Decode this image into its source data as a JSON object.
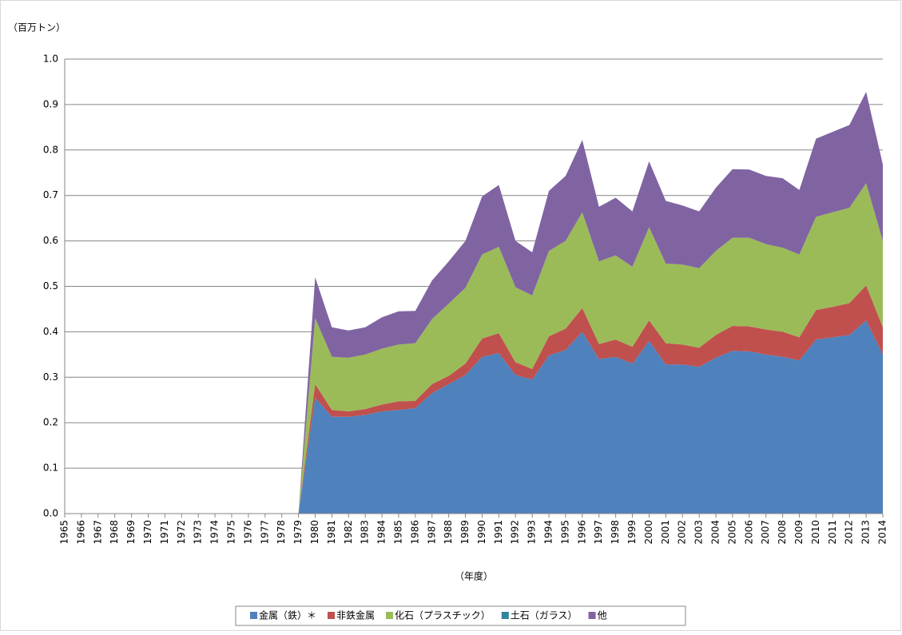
{
  "chart_data": {
    "type": "stacked_area",
    "y_axis_label": "（百万トン）",
    "x_axis_label": "（年度）",
    "categories": [
      "1965",
      "1966",
      "1967",
      "1968",
      "1969",
      "1970",
      "1971",
      "1972",
      "1973",
      "1974",
      "1975",
      "1976",
      "1977",
      "1978",
      "1979",
      "1980",
      "1981",
      "1982",
      "1983",
      "1984",
      "1985",
      "1986",
      "1987",
      "1988",
      "1989",
      "1990",
      "1991",
      "1992",
      "1993",
      "1994",
      "1995",
      "1996",
      "1997",
      "1998",
      "1999",
      "2000",
      "2001",
      "2002",
      "2003",
      "2004",
      "2005",
      "2006",
      "2007",
      "2008",
      "2009",
      "2010",
      "2011",
      "2012",
      "2013",
      "2014"
    ],
    "series": [
      {
        "name": "金属（鉄）＊",
        "color": "#4f81bd",
        "values": [
          0,
          0,
          0,
          0,
          0,
          0,
          0,
          0,
          0,
          0,
          0,
          0,
          0,
          0,
          0,
          0.255,
          0.213,
          0.213,
          0.217,
          0.225,
          0.228,
          0.232,
          0.265,
          0.285,
          0.305,
          0.345,
          0.353,
          0.305,
          0.295,
          0.348,
          0.36,
          0.4,
          0.34,
          0.345,
          0.33,
          0.38,
          0.328,
          0.328,
          0.323,
          0.343,
          0.358,
          0.357,
          0.35,
          0.345,
          0.337,
          0.383,
          0.388,
          0.393,
          0.425,
          0.35
        ]
      },
      {
        "name": "非鉄金属",
        "color": "#c0504d",
        "values": [
          0,
          0,
          0,
          0,
          0,
          0,
          0,
          0,
          0,
          0,
          0,
          0,
          0,
          0,
          0,
          0.03,
          0.015,
          0.012,
          0.013,
          0.015,
          0.019,
          0.016,
          0.02,
          0.018,
          0.025,
          0.04,
          0.044,
          0.028,
          0.023,
          0.042,
          0.047,
          0.052,
          0.033,
          0.038,
          0.037,
          0.045,
          0.047,
          0.044,
          0.042,
          0.05,
          0.055,
          0.055,
          0.055,
          0.055,
          0.051,
          0.065,
          0.067,
          0.07,
          0.077,
          0.06
        ]
      },
      {
        "name": "化石（プラスチック）",
        "color": "#9bbb59",
        "values": [
          0,
          0,
          0,
          0,
          0,
          0,
          0,
          0,
          0,
          0,
          0,
          0,
          0,
          0,
          0,
          0.145,
          0.117,
          0.118,
          0.12,
          0.123,
          0.125,
          0.127,
          0.143,
          0.159,
          0.167,
          0.185,
          0.19,
          0.165,
          0.162,
          0.188,
          0.193,
          0.211,
          0.182,
          0.185,
          0.176,
          0.205,
          0.175,
          0.176,
          0.175,
          0.185,
          0.194,
          0.195,
          0.188,
          0.185,
          0.182,
          0.205,
          0.208,
          0.21,
          0.225,
          0.19
        ]
      },
      {
        "name": "土石（ガラス）",
        "color": "#31859c",
        "values": [
          0,
          0,
          0,
          0,
          0,
          0,
          0,
          0,
          0,
          0,
          0,
          0,
          0,
          0,
          0,
          0,
          0,
          0,
          0,
          0,
          0,
          0,
          0,
          0,
          0,
          0,
          0,
          0,
          0,
          0,
          0,
          0,
          0,
          0,
          0,
          0,
          0,
          0,
          0,
          0,
          0,
          0,
          0,
          0,
          0,
          0,
          0,
          0,
          0,
          0
        ]
      },
      {
        "name": "他",
        "color": "#8064a2",
        "values": [
          0,
          0,
          0,
          0,
          0,
          0,
          0,
          0,
          0,
          0,
          0,
          0,
          0,
          0,
          0,
          0.09,
          0.065,
          0.06,
          0.06,
          0.069,
          0.073,
          0.071,
          0.085,
          0.093,
          0.103,
          0.128,
          0.136,
          0.102,
          0.095,
          0.132,
          0.143,
          0.159,
          0.12,
          0.127,
          0.122,
          0.145,
          0.138,
          0.13,
          0.125,
          0.139,
          0.151,
          0.15,
          0.15,
          0.153,
          0.142,
          0.172,
          0.177,
          0.182,
          0.201,
          0.168
        ]
      }
    ],
    "ylim": [
      0,
      1
    ],
    "yticks": [
      {
        "value": 0,
        "label": "0.0"
      },
      0.1,
      0.2,
      0.3,
      0.4,
      0.5,
      0.6,
      0.7,
      0.8,
      0.9,
      {
        "value": 1,
        "label": "1.0"
      }
    ],
    "grid": true
  }
}
